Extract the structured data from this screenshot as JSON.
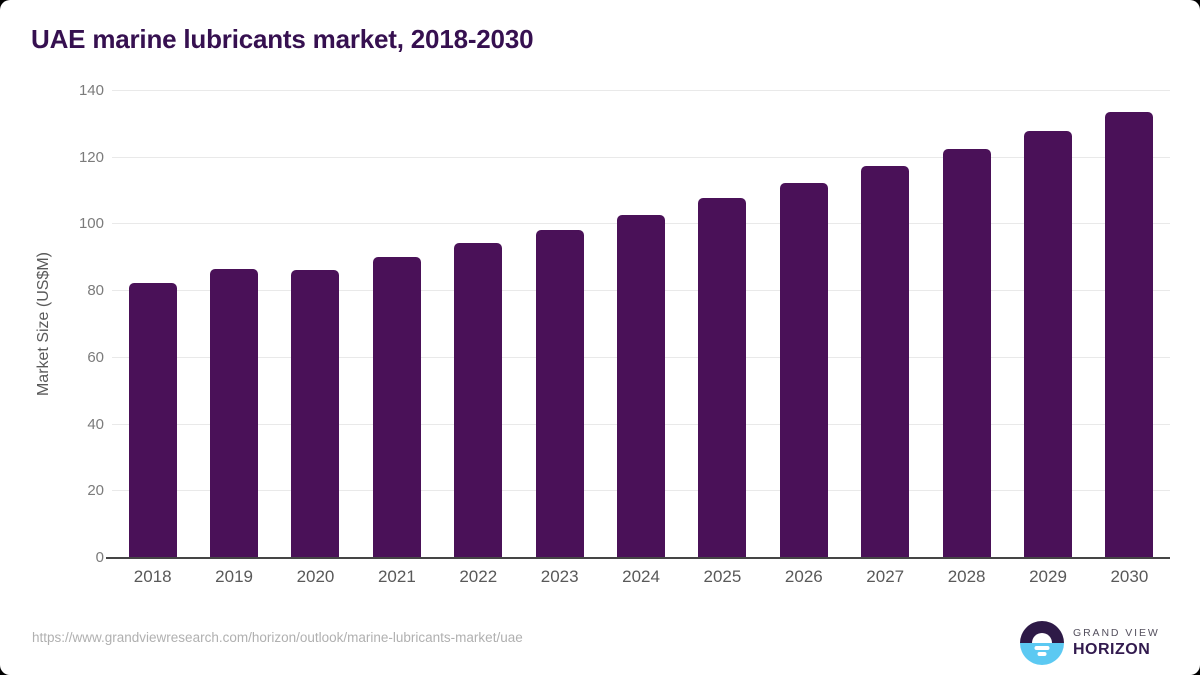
{
  "title": "UAE marine lubricants market, 2018-2030",
  "chart_data": {
    "type": "bar",
    "title": "UAE marine lubricants market, 2018-2030",
    "categories": [
      "2018",
      "2019",
      "2020",
      "2021",
      "2022",
      "2023",
      "2024",
      "2025",
      "2026",
      "2027",
      "2028",
      "2029",
      "2030"
    ],
    "values": [
      82.6,
      86.6,
      86.5,
      90.2,
      94.4,
      98.3,
      102.9,
      107.8,
      112.3,
      117.4,
      122.7,
      128.0,
      133.7
    ],
    "xlabel": "",
    "ylabel": "Market Size (US$M)",
    "ylim": [
      0,
      140
    ],
    "yticks": [
      0,
      20,
      40,
      60,
      80,
      100,
      120,
      140
    ],
    "bar_color": "#4a1158",
    "grid": true,
    "legend": false
  },
  "footer": {
    "source_url": "https://www.grandviewresearch.com/horizon/outlook/marine-lubricants-market/uae",
    "logo": {
      "line1": "GRAND VIEW",
      "line2": "HORIZON"
    }
  },
  "colors": {
    "title_text": "#361050",
    "bar": "#4a1158",
    "gridline": "#e9e9e9",
    "axis_line": "#454545",
    "y_tick_text": "#7b7b7b",
    "x_tick_text": "#595959",
    "source_text": "#b0b0b0",
    "logo_purple": "#2e1a47",
    "logo_blue": "#5cc9f2"
  }
}
